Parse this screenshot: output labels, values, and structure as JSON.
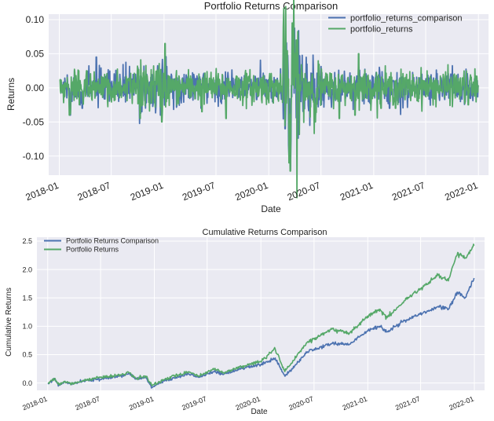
{
  "chart_data": [
    {
      "type": "line",
      "title": "Portfolio Returns Comparison",
      "xlabel": "Date",
      "ylabel": "Returns",
      "xlim": [
        "2017-11-25",
        "2022-02-05"
      ],
      "ylim": [
        -0.128,
        0.108
      ],
      "x_ticks": [
        "2018-01",
        "2018-07",
        "2019-01",
        "2019-07",
        "2020-01",
        "2020-07",
        "2021-01",
        "2021-07",
        "2022-01"
      ],
      "y_ticks": [
        "0.10",
        "0.05",
        "0.00",
        "-0.05",
        "-0.10"
      ],
      "y_tick_values": [
        0.1,
        0.05,
        0.0,
        -0.05,
        -0.1
      ],
      "grid": true,
      "legend": "top-right",
      "x_start": "2018-01-02",
      "x_end": "2021-12-31",
      "series": [
        {
          "name": "portfolio_returns_comparison",
          "color": "#4c72b0",
          "points": [
            [
              "2018-01-02",
              0.01
            ],
            [
              "2018-02-08",
              -0.04
            ],
            [
              "2018-03-22",
              -0.03
            ],
            [
              "2018-05-10",
              0.045
            ],
            [
              "2018-10-15",
              -0.035
            ],
            [
              "2018-12-20",
              -0.04
            ],
            [
              "2019-05-10",
              -0.03
            ],
            [
              "2020-02-27",
              -0.06
            ],
            [
              "2020-03-12",
              -0.1
            ],
            [
              "2020-03-16",
              -0.12
            ],
            [
              "2020-03-24",
              0.09
            ],
            [
              "2020-03-26",
              0.06
            ],
            [
              "2020-06-11",
              -0.04
            ],
            [
              "2020-11-09",
              0.03
            ],
            [
              "2021-02-25",
              -0.03
            ],
            [
              "2021-11-26",
              -0.02
            ],
            [
              "2021-12-31",
              0.003
            ]
          ]
        },
        {
          "name": "portfolio_returns",
          "color": "#55a868",
          "points": [
            [
              "2018-01-02",
              0.012
            ],
            [
              "2018-02-05",
              -0.04
            ],
            [
              "2018-02-08",
              -0.038
            ],
            [
              "2018-04-06",
              0.025
            ],
            [
              "2018-10-10",
              -0.045
            ],
            [
              "2018-12-24",
              -0.05
            ],
            [
              "2019-01-04",
              0.065
            ],
            [
              "2019-05-13",
              -0.035
            ],
            [
              "2019-08-05",
              -0.045
            ],
            [
              "2020-02-24",
              0.06
            ],
            [
              "2020-03-12",
              -0.11
            ],
            [
              "2020-03-16",
              -0.122
            ],
            [
              "2020-03-24",
              0.095
            ],
            [
              "2020-04-06",
              0.07
            ],
            [
              "2020-06-11",
              -0.05
            ],
            [
              "2020-09-03",
              -0.045
            ],
            [
              "2020-10-28",
              -0.04
            ],
            [
              "2020-11-09",
              0.05
            ],
            [
              "2021-01-27",
              -0.03
            ],
            [
              "2021-03-18",
              -0.03
            ],
            [
              "2021-11-26",
              -0.025
            ],
            [
              "2021-12-31",
              0.004
            ]
          ]
        }
      ]
    },
    {
      "type": "line",
      "title": "Cumulative Returns Comparison",
      "xlabel": "Date",
      "ylabel": "Cumulative Returns",
      "xlim": [
        "2017-11-25",
        "2022-02-05"
      ],
      "ylim": [
        -0.13,
        2.57
      ],
      "x_ticks": [
        "2018-01",
        "2018-07",
        "2019-01",
        "2019-07",
        "2020-01",
        "2020-07",
        "2021-01",
        "2021-07",
        "2022-01"
      ],
      "y_ticks": [
        "2.5",
        "2.0",
        "1.5",
        "1.0",
        "0.5",
        "0.0"
      ],
      "y_tick_values": [
        2.5,
        2.0,
        1.5,
        1.0,
        0.5,
        0.0
      ],
      "grid": true,
      "legend": "top-left",
      "series": [
        {
          "name": "Portfolio Returns Comparison",
          "color": "#4c72b0",
          "points": [
            [
              "2018-01-02",
              0.0
            ],
            [
              "2018-01-26",
              0.07
            ],
            [
              "2018-02-08",
              -0.04
            ],
            [
              "2018-03-01",
              0.02
            ],
            [
              "2018-03-23",
              -0.02
            ],
            [
              "2018-05-01",
              0.03
            ],
            [
              "2018-06-15",
              0.06
            ],
            [
              "2018-08-01",
              0.1
            ],
            [
              "2018-09-20",
              0.13
            ],
            [
              "2018-10-05",
              0.17
            ],
            [
              "2018-10-29",
              0.07
            ],
            [
              "2018-12-03",
              0.1
            ],
            [
              "2018-12-24",
              -0.08
            ],
            [
              "2019-01-31",
              0.03
            ],
            [
              "2019-04-30",
              0.16
            ],
            [
              "2019-06-03",
              0.1
            ],
            [
              "2019-07-26",
              0.21
            ],
            [
              "2019-08-26",
              0.15
            ],
            [
              "2019-10-31",
              0.26
            ],
            [
              "2019-12-31",
              0.32
            ],
            [
              "2020-02-19",
              0.44
            ],
            [
              "2020-03-23",
              0.12
            ],
            [
              "2020-06-08",
              0.55
            ],
            [
              "2020-08-31",
              0.7
            ],
            [
              "2020-10-30",
              0.68
            ],
            [
              "2020-12-31",
              0.92
            ],
            [
              "2021-02-12",
              1.0
            ],
            [
              "2021-03-08",
              0.9
            ],
            [
              "2021-05-07",
              1.1
            ],
            [
              "2021-08-31",
              1.35
            ],
            [
              "2021-10-04",
              1.3
            ],
            [
              "2021-11-05",
              1.6
            ],
            [
              "2021-11-30",
              1.5
            ],
            [
              "2021-12-31",
              1.85
            ]
          ]
        },
        {
          "name": "Portfolio Returns",
          "color": "#55a868",
          "points": [
            [
              "2018-01-02",
              0.0
            ],
            [
              "2018-01-26",
              0.08
            ],
            [
              "2018-02-08",
              -0.03
            ],
            [
              "2018-03-01",
              0.03
            ],
            [
              "2018-03-23",
              -0.01
            ],
            [
              "2018-05-01",
              0.04
            ],
            [
              "2018-06-15",
              0.08
            ],
            [
              "2018-08-01",
              0.12
            ],
            [
              "2018-09-20",
              0.15
            ],
            [
              "2018-10-05",
              0.19
            ],
            [
              "2018-10-29",
              0.08
            ],
            [
              "2018-12-03",
              0.12
            ],
            [
              "2018-12-24",
              -0.05
            ],
            [
              "2019-01-31",
              0.06
            ],
            [
              "2019-04-30",
              0.2
            ],
            [
              "2019-06-03",
              0.12
            ],
            [
              "2019-07-26",
              0.25
            ],
            [
              "2019-08-26",
              0.18
            ],
            [
              "2019-10-31",
              0.3
            ],
            [
              "2019-12-31",
              0.38
            ],
            [
              "2020-02-19",
              0.6
            ],
            [
              "2020-03-23",
              0.2
            ],
            [
              "2020-06-08",
              0.72
            ],
            [
              "2020-08-31",
              0.95
            ],
            [
              "2020-10-30",
              0.88
            ],
            [
              "2020-12-31",
              1.18
            ],
            [
              "2021-02-12",
              1.3
            ],
            [
              "2021-03-08",
              1.15
            ],
            [
              "2021-05-07",
              1.45
            ],
            [
              "2021-08-31",
              1.9
            ],
            [
              "2021-10-04",
              1.8
            ],
            [
              "2021-11-05",
              2.3
            ],
            [
              "2021-11-30",
              2.2
            ],
            [
              "2021-12-31",
              2.42
            ]
          ]
        }
      ]
    }
  ]
}
